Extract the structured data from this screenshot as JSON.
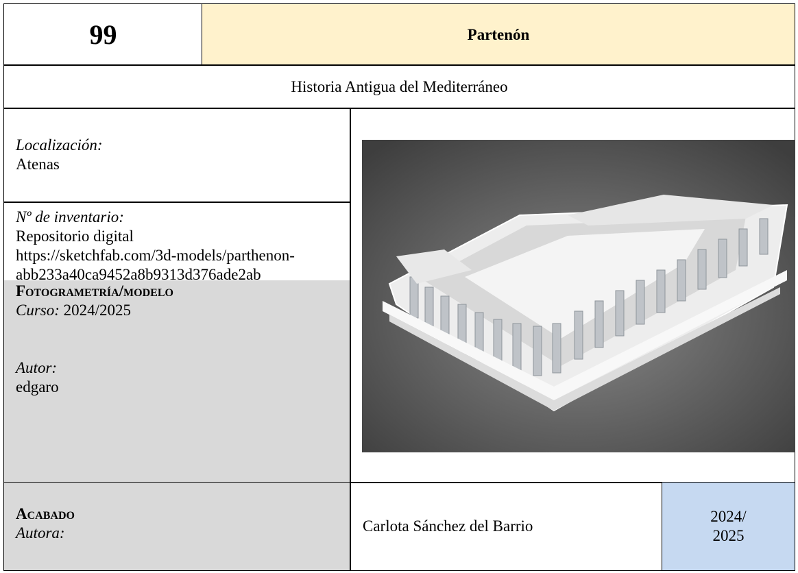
{
  "header": {
    "number": "99",
    "title": "Partenón"
  },
  "subtitle": "Historia Antigua del Mediterráneo",
  "location": {
    "label": "Localización:",
    "value": "Atenas"
  },
  "inventory": {
    "label": "Nº de inventario:",
    "lines": [
      "Repositorio digital",
      "https://sketchfab.com/3d-models/parthenon-abb233a40ca9452a8b9313d376ade2ab"
    ]
  },
  "photogrammetry": {
    "heading": "Fotogrametría/modelo",
    "course_label": "Curso:",
    "course": "2024/2025",
    "author_label": "Autor:",
    "author": "edgaro"
  },
  "finish": {
    "heading": "Acabado",
    "author_label": "Autora:",
    "author": "Carlota Sánchez del Barrio",
    "year": "2024/ 2025"
  }
}
